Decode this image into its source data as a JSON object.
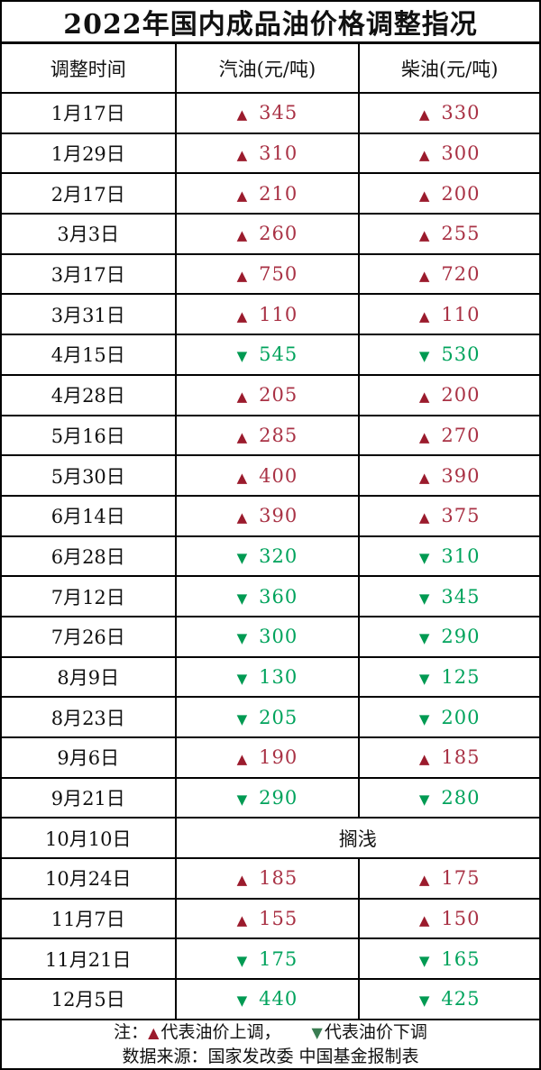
{
  "title": "2022年国内成品油价格调整指况",
  "symbols": {
    "up": "▲",
    "down": "▼"
  },
  "colors": {
    "up_triangle": "#9B1B2D",
    "up_value": "#A93245",
    "down_triangle": "#009A52",
    "down_value": "#00A35C",
    "note_up_triangle": "#9B1B2D",
    "note_down_triangle": "#3A7D52",
    "border": "#000000",
    "background": "#FFFFFF",
    "text": "#111111"
  },
  "chart_data": {
    "type": "table",
    "title": "2022年国内成品油价格调整指况",
    "columns": [
      "调整时间",
      "汽油(元/吨)",
      "柴油(元/吨)"
    ],
    "rows": [
      {
        "date": "1月17日",
        "gasoline": 345,
        "diesel": 330
      },
      {
        "date": "1月29日",
        "gasoline": 310,
        "diesel": 300
      },
      {
        "date": "2月17日",
        "gasoline": 210,
        "diesel": 200
      },
      {
        "date": "3月3日",
        "gasoline": 260,
        "diesel": 255
      },
      {
        "date": "3月17日",
        "gasoline": 750,
        "diesel": 720
      },
      {
        "date": "3月31日",
        "gasoline": 110,
        "diesel": 110
      },
      {
        "date": "4月15日",
        "gasoline": -545,
        "diesel": -530
      },
      {
        "date": "4月28日",
        "gasoline": 205,
        "diesel": 200
      },
      {
        "date": "5月16日",
        "gasoline": 285,
        "diesel": 270
      },
      {
        "date": "5月30日",
        "gasoline": 400,
        "diesel": 390
      },
      {
        "date": "6月14日",
        "gasoline": 390,
        "diesel": 375
      },
      {
        "date": "6月28日",
        "gasoline": -320,
        "diesel": -310
      },
      {
        "date": "7月12日",
        "gasoline": -360,
        "diesel": -345
      },
      {
        "date": "7月26日",
        "gasoline": -300,
        "diesel": -290
      },
      {
        "date": "8月9日",
        "gasoline": -130,
        "diesel": -125
      },
      {
        "date": "8月23日",
        "gasoline": -205,
        "diesel": -200
      },
      {
        "date": "9月6日",
        "gasoline": 190,
        "diesel": 185
      },
      {
        "date": "9月21日",
        "gasoline": -290,
        "diesel": -280
      },
      {
        "date": "10月10日",
        "note": "搁浅"
      },
      {
        "date": "10月24日",
        "gasoline": 185,
        "diesel": 175
      },
      {
        "date": "11月7日",
        "gasoline": 155,
        "diesel": 150
      },
      {
        "date": "11月21日",
        "gasoline": -175,
        "diesel": -165
      },
      {
        "date": "12月5日",
        "gasoline": -440,
        "diesel": -425
      }
    ]
  },
  "footer": {
    "note_prefix": "注：",
    "up_text": "代表油价上调，",
    "down_text": "代表油价下调",
    "source": "数据来源：国家发改委  中国基金报制表"
  }
}
